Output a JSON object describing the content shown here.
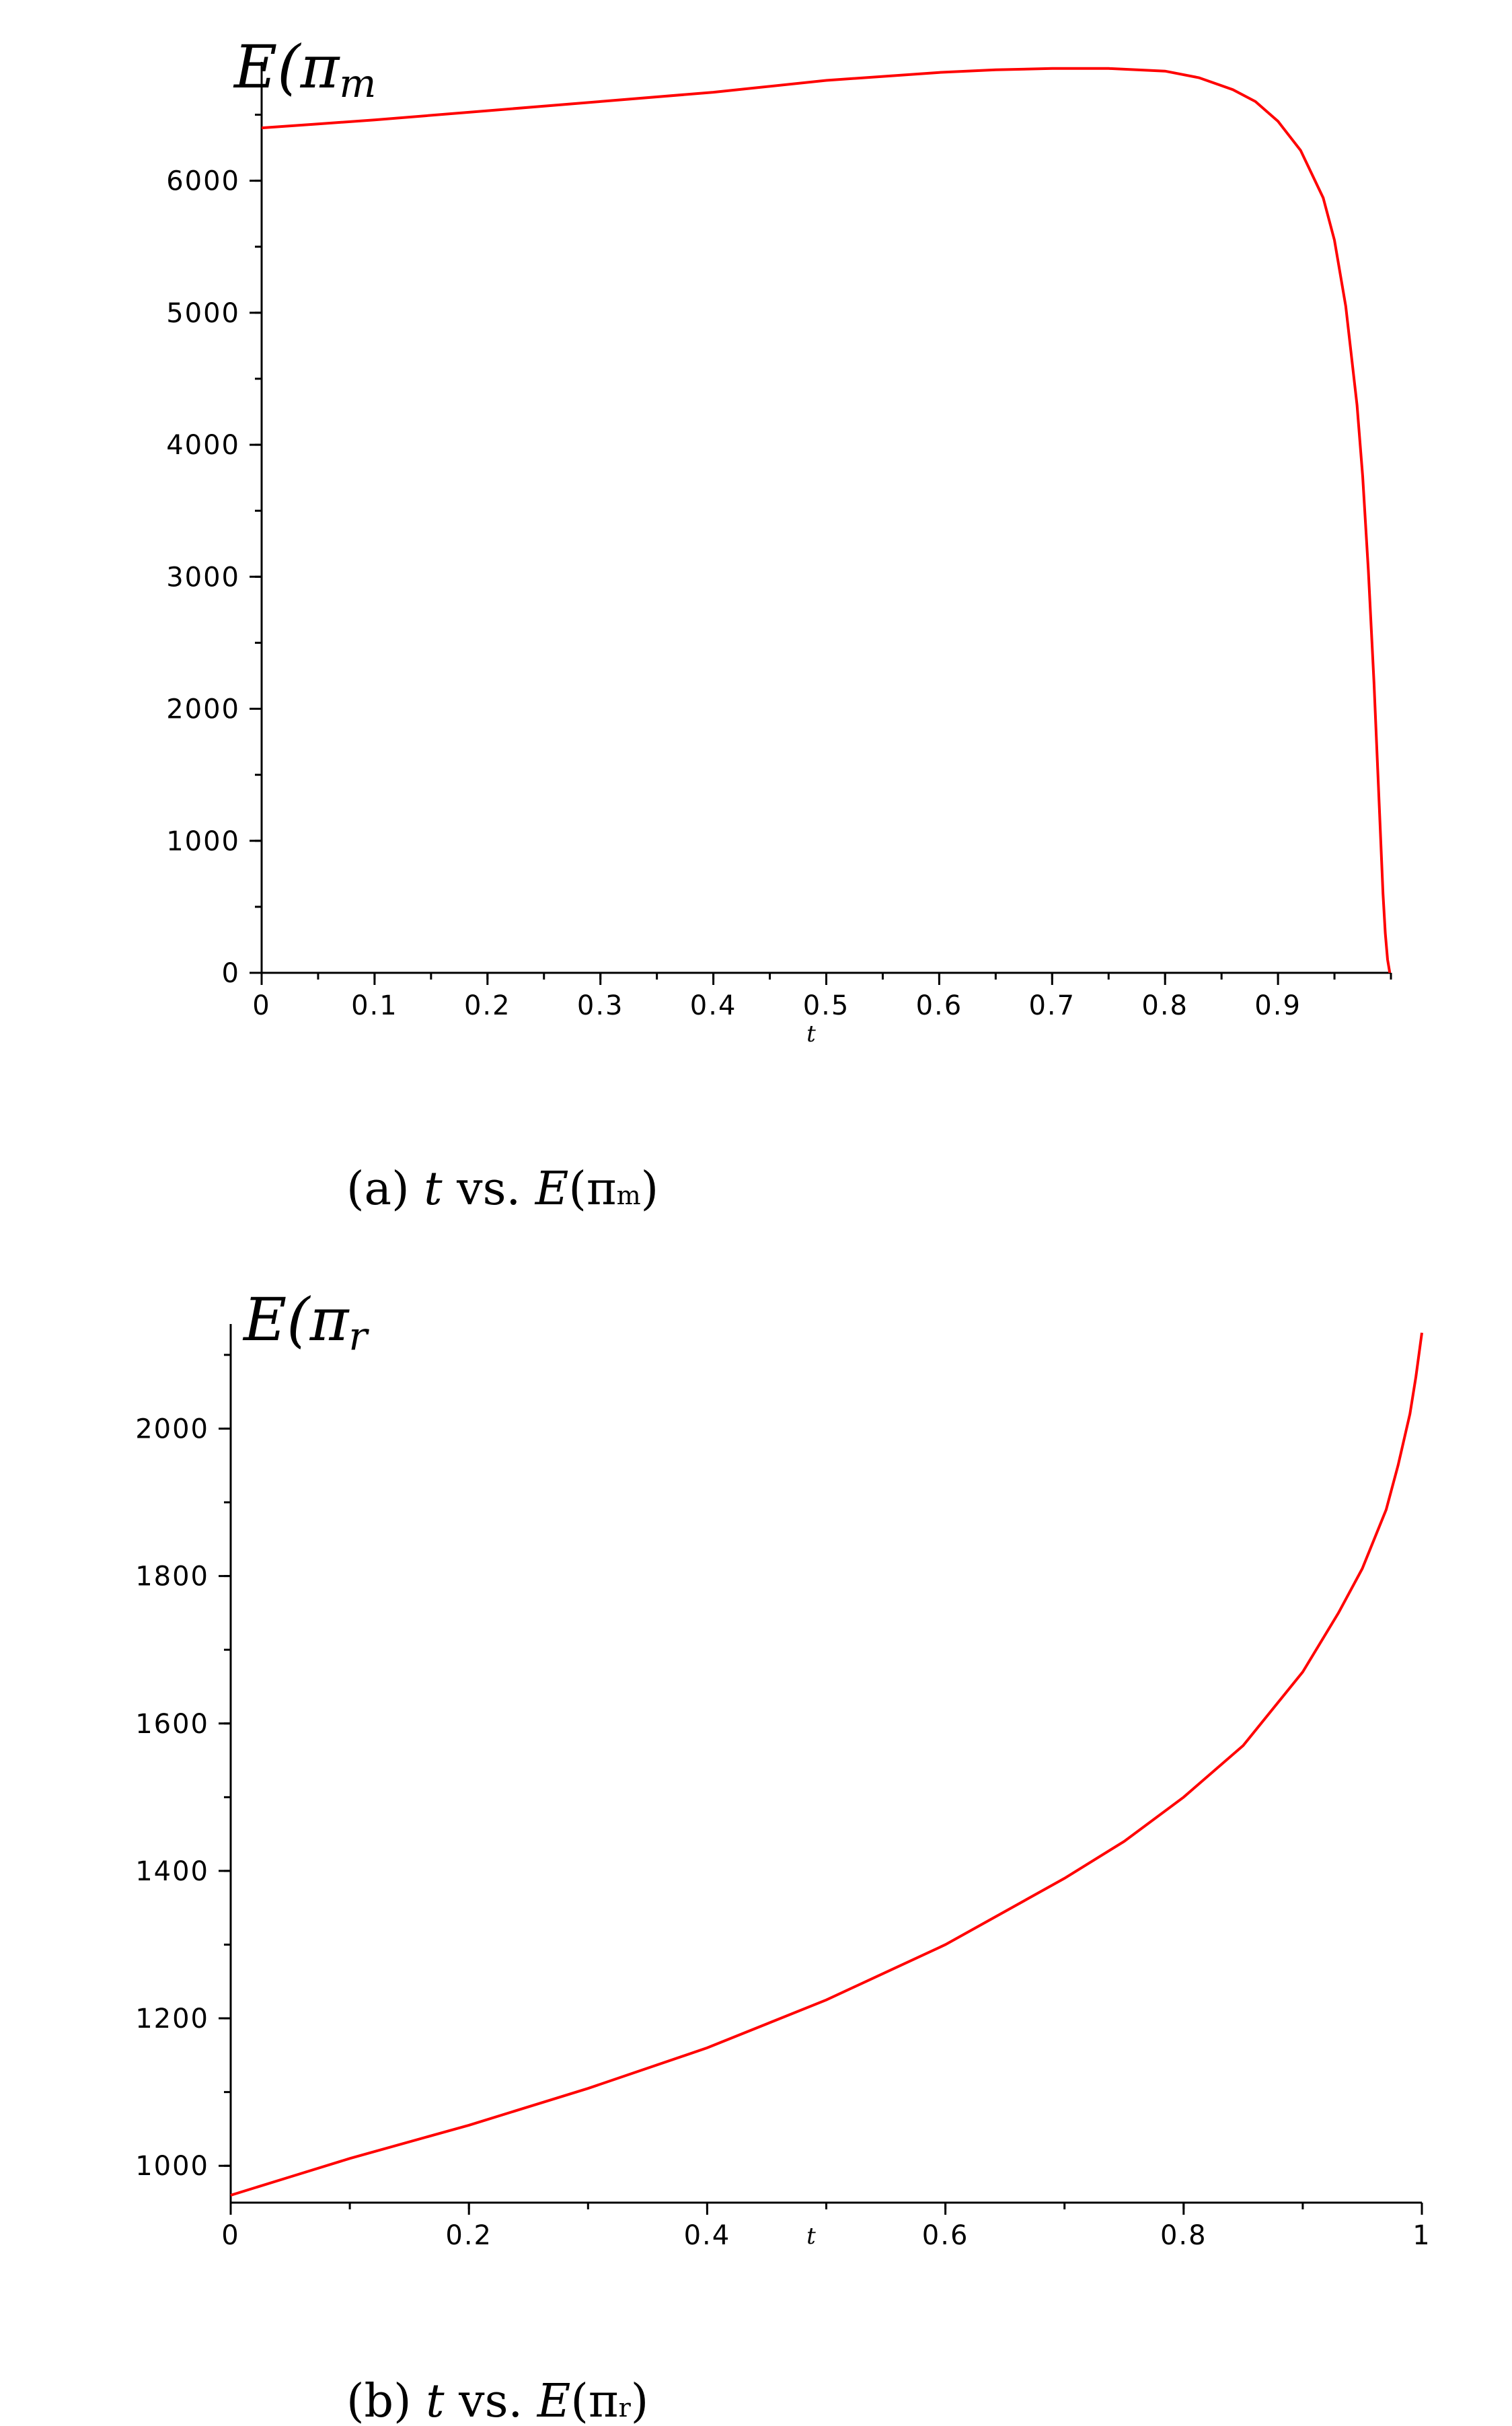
{
  "chart_data": [
    {
      "type": "line",
      "panel": "a",
      "caption": {
        "prefix": "(a) ",
        "xvar": "t",
        "mid": " vs. ",
        "yfunc": "E",
        "open": "(π",
        "sub": "m",
        "close": ")"
      },
      "ylabel": {
        "main": "E(π",
        "sub": "m"
      },
      "xlabel": "t",
      "xlim": [
        0,
        1
      ],
      "ylim": [
        0,
        6900
      ],
      "xticks": [
        0,
        0.1,
        0.2,
        0.3,
        0.4,
        0.5,
        0.6,
        0.7,
        0.8,
        0.9
      ],
      "xtick_labels": [
        "0",
        "0.1",
        "0.2",
        "0.3",
        "0.4",
        "0.5",
        "0.6",
        "0.7",
        "0.8",
        "0.9"
      ],
      "yticks": [
        0,
        1000,
        2000,
        3000,
        4000,
        5000,
        6000
      ],
      "ytick_labels": [
        "0",
        "1000",
        "2000",
        "3000",
        "4000",
        "5000",
        "6000"
      ],
      "series_color": "#ff0000",
      "x": [
        0,
        0.05,
        0.1,
        0.2,
        0.3,
        0.4,
        0.5,
        0.6,
        0.65,
        0.7,
        0.75,
        0.8,
        0.83,
        0.86,
        0.88,
        0.9,
        0.92,
        0.94,
        0.95,
        0.96,
        0.97,
        0.975,
        0.98,
        0.985,
        0.99,
        0.993,
        0.995,
        0.997,
        0.999
      ],
      "y": [
        6400,
        6430,
        6460,
        6530,
        6600,
        6670,
        6760,
        6820,
        6840,
        6850,
        6850,
        6830,
        6780,
        6690,
        6600,
        6450,
        6230,
        5870,
        5550,
        5050,
        4300,
        3760,
        3050,
        2200,
        1200,
        600,
        300,
        100,
        0
      ]
    },
    {
      "type": "line",
      "panel": "b",
      "caption": {
        "prefix": "(b) ",
        "xvar": "t",
        "mid": " vs. ",
        "yfunc": "E",
        "open": "(π",
        "sub": "r",
        "close": ")"
      },
      "ylabel": {
        "main": "E(π",
        "sub": "r"
      },
      "xlabel": "t",
      "xlim": [
        0,
        1
      ],
      "ylim": [
        950,
        2130
      ],
      "xticks": [
        0,
        0.2,
        0.4,
        0.6,
        0.8,
        1
      ],
      "xtick_labels": [
        "0",
        "0.2",
        "0.4",
        "0.6",
        "0.8",
        "1"
      ],
      "yticks": [
        1000,
        1200,
        1400,
        1600,
        1800,
        2000
      ],
      "ytick_labels": [
        "1000",
        "1200",
        "1400",
        "1600",
        "1800",
        "2000"
      ],
      "series_color": "#ff0000",
      "x": [
        0,
        0.05,
        0.1,
        0.2,
        0.3,
        0.4,
        0.5,
        0.6,
        0.7,
        0.75,
        0.8,
        0.85,
        0.9,
        0.93,
        0.95,
        0.97,
        0.98,
        0.99,
        0.995,
        1.0
      ],
      "y": [
        960,
        985,
        1010,
        1055,
        1105,
        1160,
        1225,
        1300,
        1390,
        1440,
        1500,
        1570,
        1670,
        1750,
        1810,
        1890,
        1950,
        2020,
        2070,
        2130
      ]
    }
  ]
}
